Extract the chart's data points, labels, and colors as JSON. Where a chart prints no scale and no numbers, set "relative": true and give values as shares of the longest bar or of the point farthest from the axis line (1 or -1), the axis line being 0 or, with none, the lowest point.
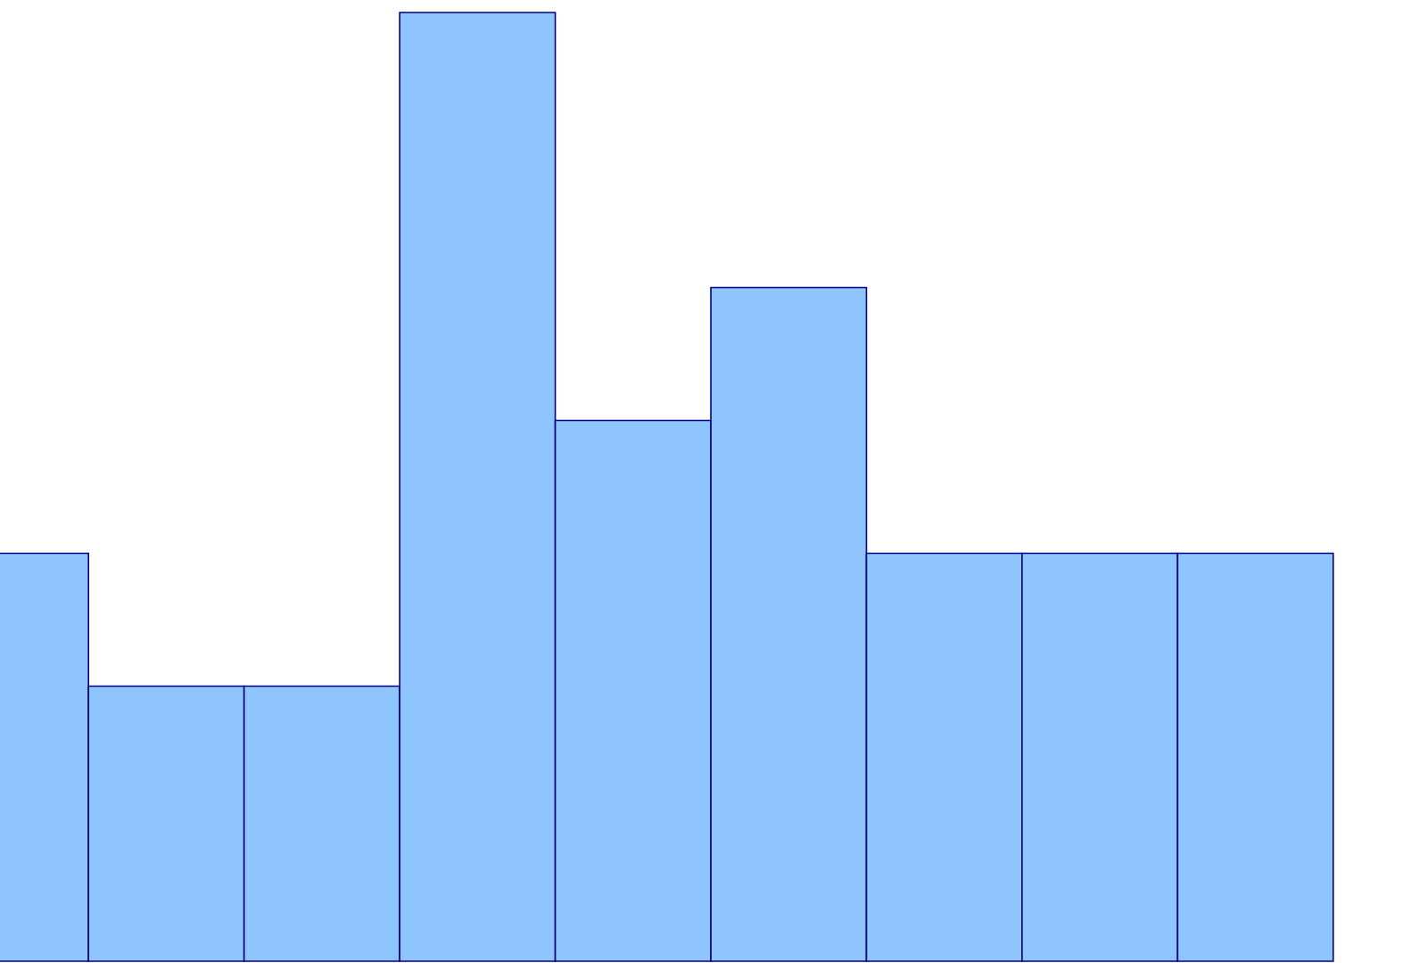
{
  "chart_data": {
    "type": "bar",
    "categories": [
      null,
      null,
      null,
      null,
      null,
      null,
      null,
      null,
      null
    ],
    "relative": true,
    "color": "#8ec5fc",
    "values": [
      0.43,
      0.29,
      0.29,
      1,
      0.57,
      0.71,
      0.43,
      0.43,
      0.43
    ]
  }
}
